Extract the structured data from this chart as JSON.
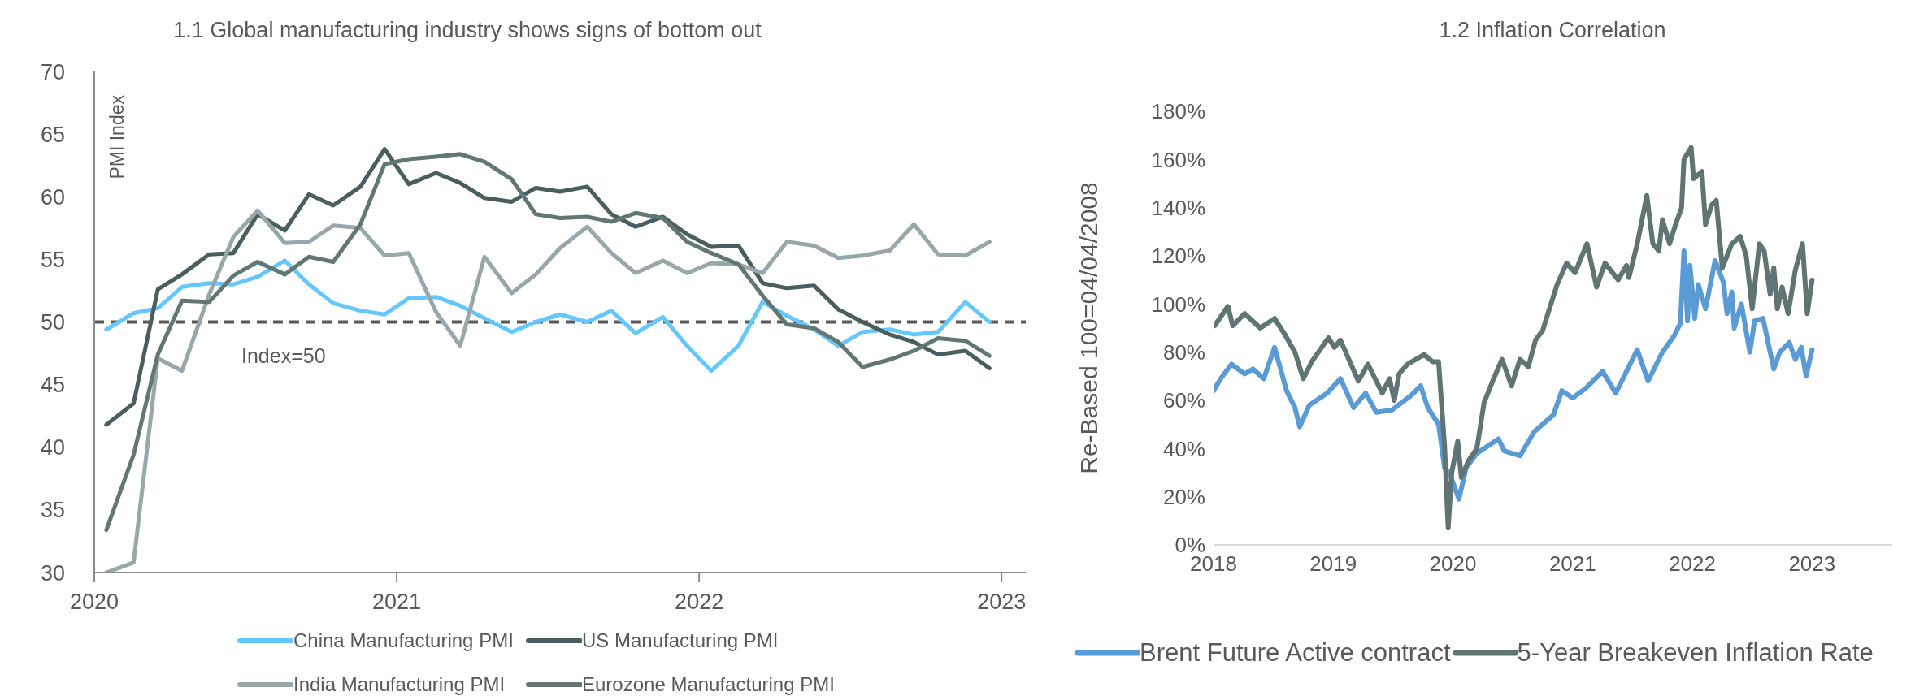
{
  "chart_data": [
    {
      "type": "line",
      "title": "1.1 Global manufacturing industry shows signs of bottom out",
      "ylabel": "PMI Index",
      "legend": "bottom",
      "x": [
        2020.04,
        2020.13,
        2020.21,
        2020.29,
        2020.38,
        2020.46,
        2020.54,
        2020.63,
        2020.71,
        2020.79,
        2020.88,
        2020.96,
        2021.04,
        2021.13,
        2021.21,
        2021.29,
        2021.38,
        2021.46,
        2021.54,
        2021.63,
        2021.71,
        2021.79,
        2021.88,
        2021.96,
        2022.04,
        2022.13,
        2022.21,
        2022.29,
        2022.38,
        2022.46,
        2022.54,
        2022.63,
        2022.71,
        2022.79,
        2022.88,
        2022.96
      ],
      "xlim": [
        2020,
        2023.08
      ],
      "xticks": [
        2020,
        2021,
        2022,
        2023
      ],
      "ylim": [
        30,
        70
      ],
      "yticks": [
        30,
        35,
        40,
        45,
        50,
        55,
        60,
        65,
        70
      ],
      "ref_lines": [
        {
          "axis": "y",
          "value": 50,
          "label": "Index=50",
          "color": "#595959",
          "line_style": "dashed"
        }
      ],
      "series": [
        {
          "name": "China Manufacturing PMI",
          "color": "#66c7ff",
          "values": [
            49.4,
            50.7,
            51.1,
            52.8,
            53.1,
            53.0,
            53.6,
            54.9,
            53.0,
            51.5,
            50.9,
            50.6,
            51.9,
            52.0,
            51.3,
            50.3,
            49.2,
            50.0,
            50.6,
            50.0,
            50.9,
            49.1,
            50.4,
            48.1,
            46.1,
            48.1,
            51.6,
            50.5,
            49.4,
            48.1,
            49.2,
            49.4,
            49.0,
            49.2,
            51.6,
            50.0
          ]
        },
        {
          "name": "US Manufacturing PMI",
          "color": "#4a5d5f",
          "values": [
            41.8,
            43.5,
            52.6,
            53.8,
            55.4,
            55.5,
            58.6,
            57.3,
            60.2,
            59.3,
            60.8,
            63.8,
            61.0,
            61.9,
            61.1,
            59.9,
            59.6,
            60.7,
            60.4,
            60.8,
            58.6,
            57.6,
            58.4,
            57.0,
            56.0,
            56.1,
            53.1,
            52.7,
            52.9,
            51.0,
            50.0,
            49.0,
            48.4,
            47.4,
            47.7,
            46.3
          ]
        },
        {
          "name": "India Manufacturing PMI",
          "color": "#97a7aa",
          "values": [
            30,
            30.8,
            47.1,
            46.1,
            52.2,
            56.8,
            58.9,
            56.3,
            56.4,
            57.7,
            57.5,
            55.3,
            55.5,
            50.8,
            48.1,
            55.2,
            52.3,
            53.8,
            55.9,
            57.6,
            55.5,
            53.9,
            54.9,
            53.9,
            54.7,
            54.6,
            53.9,
            56.4,
            56.1,
            55.1,
            55.3,
            55.7,
            57.8,
            55.4,
            55.3,
            56.4
          ]
        },
        {
          "name": "Eurozone Manufacturing PMI",
          "color": "#627775",
          "values": [
            33.4,
            39.4,
            47.4,
            51.7,
            51.6,
            53.7,
            54.8,
            53.8,
            55.2,
            54.8,
            57.8,
            62.6,
            63.0,
            63.2,
            63.4,
            62.8,
            61.4,
            58.6,
            58.3,
            58.4,
            58.0,
            58.7,
            58.3,
            56.4,
            55.5,
            54.6,
            52.1,
            49.8,
            49.5,
            48.4,
            46.4,
            47.0,
            47.7,
            48.7,
            48.5,
            47.3
          ]
        }
      ]
    },
    {
      "type": "line",
      "title": "1.2 Inflation Correlation",
      "ylabel": "Re-Based 100=04/04/2008",
      "legend": "bottom",
      "xlim": [
        2018,
        2023.67
      ],
      "xticks": [
        2018,
        2019,
        2020,
        2021,
        2022,
        2023
      ],
      "ylim": [
        0,
        180
      ],
      "yticks": [
        {
          "value": 0,
          "label": "0%"
        },
        {
          "value": 20,
          "label": "20%"
        },
        {
          "value": 40,
          "label": "40%"
        },
        {
          "value": 60,
          "label": "60%"
        },
        {
          "value": 80,
          "label": "80%"
        },
        {
          "value": 100,
          "label": "100%"
        },
        {
          "value": 120,
          "label": "120%"
        },
        {
          "value": 140,
          "label": "140%"
        },
        {
          "value": 160,
          "label": "160%"
        },
        {
          "value": 180,
          "label": "180%"
        }
      ],
      "series": [
        {
          "name": "Brent Future Active contract",
          "color": "#5b9bd5",
          "x": [
            2018.0,
            2018.06,
            2018.15,
            2018.26,
            2018.33,
            2018.42,
            2018.51,
            2018.61,
            2018.68,
            2018.72,
            2018.8,
            2018.95,
            2019.06,
            2019.17,
            2019.27,
            2019.36,
            2019.49,
            2019.65,
            2019.73,
            2019.79,
            2019.88,
            2019.93,
            2019.97,
            2020.05,
            2020.11,
            2020.2,
            2020.38,
            2020.43,
            2020.56,
            2020.68,
            2020.84,
            2020.91,
            2021.0,
            2021.11,
            2021.25,
            2021.36,
            2021.45,
            2021.54,
            2021.63,
            2021.75,
            2021.85,
            2021.9,
            2021.93,
            2021.96,
            2021.98,
            2022.02,
            2022.05,
            2022.11,
            2022.19,
            2022.26,
            2022.29,
            2022.33,
            2022.35,
            2022.41,
            2022.48,
            2022.52,
            2022.59,
            2022.68,
            2022.73,
            2022.81,
            2022.86,
            2022.91,
            2022.95,
            2023.0
          ],
          "values": [
            64,
            69,
            75,
            71,
            73,
            69,
            82,
            64,
            57,
            49,
            58,
            63,
            69,
            57,
            63,
            55,
            56,
            62,
            66,
            57,
            50,
            32,
            30,
            19,
            32,
            38,
            44,
            39,
            37,
            47,
            54,
            64,
            61,
            65,
            72,
            63,
            72,
            81,
            68,
            80,
            87,
            92,
            122,
            93,
            116,
            94,
            108,
            98,
            118,
            109,
            96,
            105,
            90,
            100,
            80,
            93,
            94,
            73,
            80,
            84,
            77,
            82,
            70,
            81
          ]
        },
        {
          "name": "5-Year Breakeven Inflation Rate",
          "color": "#5f7473",
          "x": [
            2018.01,
            2018.12,
            2018.16,
            2018.26,
            2018.39,
            2018.51,
            2018.6,
            2018.68,
            2018.75,
            2018.82,
            2018.96,
            2019.01,
            2019.06,
            2019.21,
            2019.29,
            2019.41,
            2019.47,
            2019.51,
            2019.55,
            2019.62,
            2019.76,
            2019.83,
            2019.88,
            2019.93,
            2019.96,
            2019.99,
            2020.04,
            2020.07,
            2020.13,
            2020.2,
            2020.26,
            2020.34,
            2020.41,
            2020.49,
            2020.56,
            2020.63,
            2020.69,
            2020.75,
            2020.8,
            2020.87,
            2020.95,
            2021.02,
            2021.12,
            2021.2,
            2021.27,
            2021.38,
            2021.45,
            2021.47,
            2021.54,
            2021.62,
            2021.67,
            2021.72,
            2021.75,
            2021.81,
            2021.86,
            2021.91,
            2021.93,
            2021.99,
            2022.01,
            2022.08,
            2022.11,
            2022.16,
            2022.2,
            2022.25,
            2022.33,
            2022.4,
            2022.45,
            2022.5,
            2022.56,
            2022.6,
            2022.65,
            2022.68,
            2022.71,
            2022.75,
            2022.8,
            2022.86,
            2022.92,
            2022.96,
            2023.0
          ],
          "values": [
            91,
            99,
            91,
            96,
            90,
            94,
            87,
            80,
            69,
            76,
            86,
            82,
            85,
            68,
            75,
            63,
            69,
            60,
            71,
            75,
            79,
            76,
            76,
            41,
            7,
            30,
            43,
            28,
            35,
            40,
            59,
            69,
            77,
            66,
            77,
            74,
            85,
            89,
            97,
            108,
            117,
            113,
            125,
            107,
            117,
            110,
            116,
            111,
            125,
            145,
            125,
            122,
            135,
            125,
            133,
            140,
            160,
            165,
            152,
            155,
            133,
            141,
            143,
            115,
            125,
            128,
            120,
            98,
            125,
            122,
            104,
            115,
            98,
            107,
            96,
            114,
            125,
            96,
            110
          ]
        }
      ]
    }
  ]
}
